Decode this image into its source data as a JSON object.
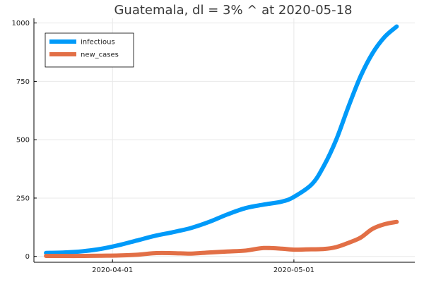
{
  "chart_data": {
    "type": "line",
    "title": "Guatemala,  dl = 3% ^ at 2020-05-18",
    "xlabel": "",
    "ylabel": "",
    "x_start": "2020-03-21",
    "x_end": "2020-05-18",
    "xlim": [
      "2020-03-19",
      "2020-05-21"
    ],
    "ylim": [
      -25,
      1020
    ],
    "grid": true,
    "legend_position": "top-left",
    "x_ticks": [
      {
        "date": "2020-04-01",
        "label": "2020-04-01"
      },
      {
        "date": "2020-05-01",
        "label": "2020-05-01"
      }
    ],
    "y_ticks": [
      {
        "value": 0,
        "label": "0"
      },
      {
        "value": 250,
        "label": "250"
      },
      {
        "value": 500,
        "label": "500"
      },
      {
        "value": 750,
        "label": "750"
      },
      {
        "value": 1000,
        "label": "1000"
      }
    ],
    "series": [
      {
        "name": "infectious",
        "color": "#009af9",
        "points": [
          [
            "2020-03-21",
            15
          ],
          [
            "2020-03-24",
            17
          ],
          [
            "2020-03-27",
            22
          ],
          [
            "2020-03-30",
            32
          ],
          [
            "2020-04-02",
            48
          ],
          [
            "2020-04-05",
            68
          ],
          [
            "2020-04-08",
            88
          ],
          [
            "2020-04-11",
            104
          ],
          [
            "2020-04-14",
            122
          ],
          [
            "2020-04-17",
            148
          ],
          [
            "2020-04-20",
            180
          ],
          [
            "2020-04-23",
            207
          ],
          [
            "2020-04-26",
            222
          ],
          [
            "2020-04-29",
            235
          ],
          [
            "2020-05-01",
            255
          ],
          [
            "2020-05-04",
            310
          ],
          [
            "2020-05-06",
            390
          ],
          [
            "2020-05-08",
            500
          ],
          [
            "2020-05-10",
            640
          ],
          [
            "2020-05-12",
            770
          ],
          [
            "2020-05-14",
            870
          ],
          [
            "2020-05-16",
            940
          ],
          [
            "2020-05-18",
            985
          ]
        ]
      },
      {
        "name": "new_cases",
        "color": "#e26f46",
        "points": [
          [
            "2020-03-21",
            2
          ],
          [
            "2020-03-24",
            2
          ],
          [
            "2020-03-27",
            2
          ],
          [
            "2020-03-30",
            3
          ],
          [
            "2020-04-02",
            4
          ],
          [
            "2020-04-05",
            7
          ],
          [
            "2020-04-08",
            14
          ],
          [
            "2020-04-11",
            14
          ],
          [
            "2020-04-14",
            12
          ],
          [
            "2020-04-17",
            17
          ],
          [
            "2020-04-20",
            21
          ],
          [
            "2020-04-23",
            25
          ],
          [
            "2020-04-26",
            36
          ],
          [
            "2020-04-29",
            33
          ],
          [
            "2020-05-01",
            29
          ],
          [
            "2020-05-03",
            30
          ],
          [
            "2020-05-06",
            32
          ],
          [
            "2020-05-08",
            40
          ],
          [
            "2020-05-10",
            58
          ],
          [
            "2020-05-12",
            80
          ],
          [
            "2020-05-14",
            118
          ],
          [
            "2020-05-16",
            138
          ],
          [
            "2020-05-18",
            148
          ]
        ]
      }
    ]
  }
}
